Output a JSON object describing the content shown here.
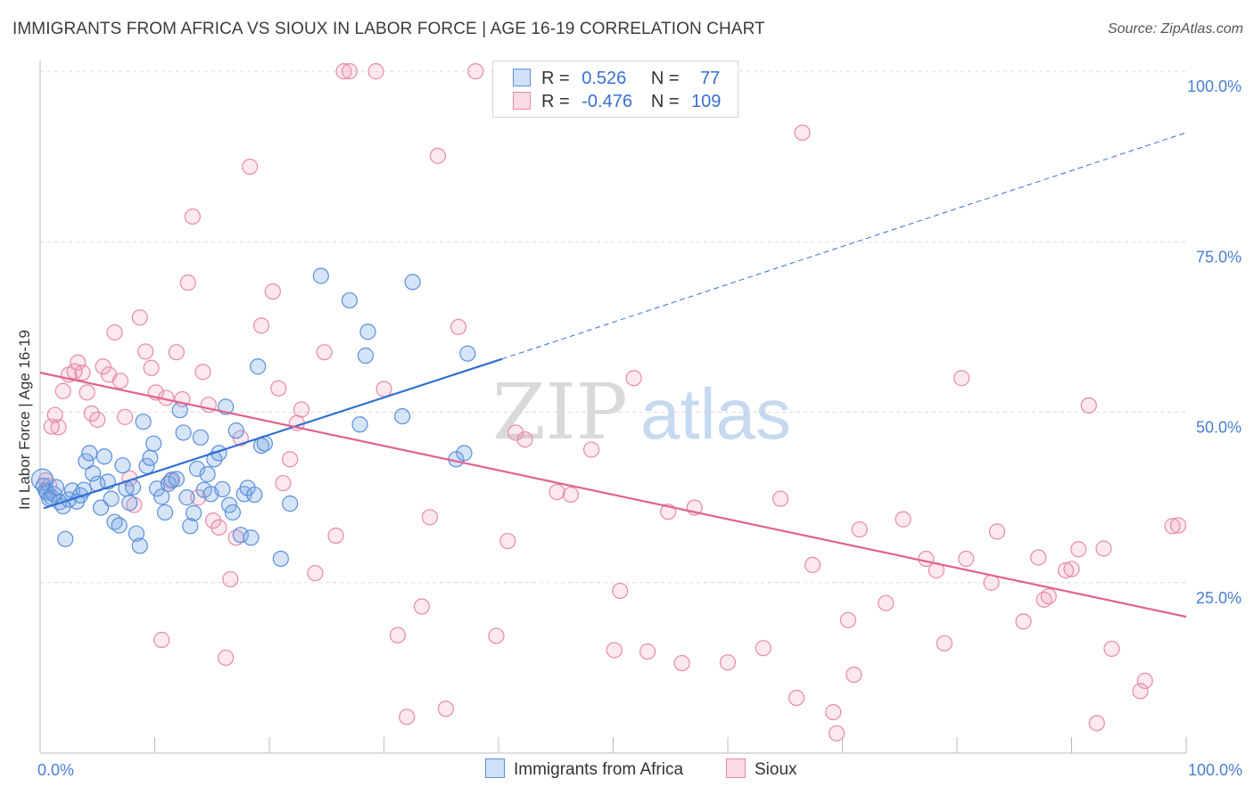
{
  "title": "IMMIGRANTS FROM AFRICA VS SIOUX IN LABOR FORCE | AGE 16-19 CORRELATION CHART",
  "source": "Source: ZipAtlas.com",
  "watermark": {
    "zip": "ZIP",
    "atlas": "atlas"
  },
  "colors": {
    "blue": "#5b8fd8",
    "blue_line": "#2f6fd1",
    "pink": "#e48aa8",
    "pink_line": "#e0628f",
    "tick": "#4a7fd0"
  },
  "legend": {
    "rows": [
      {
        "r_label": "R =",
        "r_value": "0.526",
        "n_label": "N =",
        "n_value": "77"
      },
      {
        "r_label": "R =",
        "r_value": "-0.476",
        "n_label": "N =",
        "n_value": "109"
      }
    ]
  },
  "bottom_legend": [
    "Immigrants from Africa",
    "Sioux"
  ],
  "chart_data": {
    "type": "scatter",
    "title": "IMMIGRANTS FROM AFRICA VS SIOUX IN LABOR FORCE | AGE 16-19 CORRELATION CHART",
    "xlabel": "",
    "ylabel": "In Labor Force | Age 16-19",
    "xlim": [
      0,
      100
    ],
    "ylim": [
      0,
      100
    ],
    "x_ticks": [
      "0.0%",
      "100.0%"
    ],
    "y_ticks": [
      {
        "value": 25,
        "label": "25.0%"
      },
      {
        "value": 50,
        "label": "50.0%"
      },
      {
        "value": 75,
        "label": "75.0%"
      },
      {
        "value": 100,
        "label": "100.0%"
      }
    ],
    "grid": "horizontal dashed",
    "legend_position": "top-center",
    "series": [
      {
        "name": "Immigrants from Africa",
        "color": "#5b8fd8",
        "trend": {
          "x0": 0.3,
          "y0": 35.9,
          "x1": 40.3,
          "y1": 57.8,
          "dash_to_x": 100,
          "dash_to_y": 91.0
        },
        "points": [
          [
            0.2,
            40.1
          ],
          [
            0.3,
            39.2
          ],
          [
            0.5,
            38.5
          ],
          [
            0.6,
            38.2
          ],
          [
            0.8,
            37.3
          ],
          [
            1.0,
            37.5
          ],
          [
            1.2,
            38.0
          ],
          [
            1.4,
            39.0
          ],
          [
            1.7,
            36.8
          ],
          [
            2.0,
            36.2
          ],
          [
            2.2,
            31.4
          ],
          [
            2.5,
            37.2
          ],
          [
            2.8,
            38.5
          ],
          [
            3.2,
            36.9
          ],
          [
            3.5,
            37.8
          ],
          [
            3.8,
            38.6
          ],
          [
            4.0,
            42.8
          ],
          [
            4.3,
            44.0
          ],
          [
            4.6,
            41.0
          ],
          [
            5.0,
            39.5
          ],
          [
            5.3,
            36.0
          ],
          [
            5.6,
            43.5
          ],
          [
            5.9,
            39.8
          ],
          [
            6.2,
            37.3
          ],
          [
            6.5,
            33.9
          ],
          [
            6.9,
            33.4
          ],
          [
            7.2,
            42.2
          ],
          [
            7.5,
            38.8
          ],
          [
            7.8,
            36.7
          ],
          [
            8.1,
            39.0
          ],
          [
            8.4,
            32.2
          ],
          [
            8.7,
            30.4
          ],
          [
            9.0,
            48.6
          ],
          [
            9.3,
            42.1
          ],
          [
            9.6,
            43.3
          ],
          [
            9.9,
            45.4
          ],
          [
            10.2,
            38.8
          ],
          [
            10.6,
            37.6
          ],
          [
            10.9,
            35.3
          ],
          [
            11.2,
            39.5
          ],
          [
            11.5,
            40.1
          ],
          [
            11.9,
            40.2
          ],
          [
            12.2,
            50.3
          ],
          [
            12.5,
            47.0
          ],
          [
            12.8,
            37.5
          ],
          [
            13.1,
            33.3
          ],
          [
            13.4,
            35.2
          ],
          [
            13.7,
            41.7
          ],
          [
            14.0,
            46.3
          ],
          [
            14.3,
            38.6
          ],
          [
            14.6,
            40.9
          ],
          [
            14.9,
            38.0
          ],
          [
            15.2,
            43.1
          ],
          [
            15.6,
            44.0
          ],
          [
            15.9,
            38.7
          ],
          [
            16.2,
            50.8
          ],
          [
            16.5,
            36.4
          ],
          [
            16.8,
            35.3
          ],
          [
            17.1,
            47.3
          ],
          [
            17.5,
            32.0
          ],
          [
            17.8,
            38.0
          ],
          [
            18.1,
            38.9
          ],
          [
            18.4,
            31.6
          ],
          [
            18.7,
            37.9
          ],
          [
            19.0,
            56.7
          ],
          [
            19.3,
            45.1
          ],
          [
            19.6,
            45.4
          ],
          [
            21.0,
            28.5
          ],
          [
            21.8,
            36.6
          ],
          [
            24.5,
            70.0
          ],
          [
            27.0,
            66.4
          ],
          [
            27.9,
            48.2
          ],
          [
            28.4,
            58.3
          ],
          [
            28.6,
            61.8
          ],
          [
            31.6,
            49.4
          ],
          [
            32.5,
            69.1
          ],
          [
            36.3,
            43.1
          ],
          [
            37.0,
            44.0
          ],
          [
            37.3,
            58.6
          ]
        ]
      },
      {
        "name": "Sioux",
        "color": "#e48aa8",
        "trend": {
          "x0": 0.0,
          "y0": 55.8,
          "x1": 100.0,
          "y1": 20.0
        },
        "points": [
          [
            0.5,
            40.0
          ],
          [
            0.8,
            39.2
          ],
          [
            1.0,
            47.9
          ],
          [
            1.3,
            49.6
          ],
          [
            1.6,
            47.8
          ],
          [
            2.0,
            53.1
          ],
          [
            2.5,
            55.5
          ],
          [
            3.0,
            56.0
          ],
          [
            3.3,
            57.3
          ],
          [
            3.7,
            55.8
          ],
          [
            4.1,
            52.9
          ],
          [
            4.5,
            49.8
          ],
          [
            5.0,
            48.9
          ],
          [
            5.5,
            56.7
          ],
          [
            6.0,
            55.5
          ],
          [
            6.5,
            61.7
          ],
          [
            7.0,
            54.6
          ],
          [
            7.4,
            49.3
          ],
          [
            7.8,
            40.3
          ],
          [
            8.2,
            36.4
          ],
          [
            8.7,
            63.9
          ],
          [
            9.2,
            58.9
          ],
          [
            9.7,
            56.5
          ],
          [
            10.1,
            52.9
          ],
          [
            10.6,
            16.6
          ],
          [
            11.0,
            52.1
          ],
          [
            11.4,
            39.9
          ],
          [
            11.9,
            58.8
          ],
          [
            12.4,
            51.9
          ],
          [
            12.9,
            69.0
          ],
          [
            13.3,
            78.7
          ],
          [
            13.8,
            37.5
          ],
          [
            14.2,
            55.9
          ],
          [
            14.7,
            51.1
          ],
          [
            15.1,
            34.1
          ],
          [
            15.6,
            33.1
          ],
          [
            16.2,
            14.0
          ],
          [
            16.6,
            25.5
          ],
          [
            17.1,
            31.6
          ],
          [
            17.5,
            46.2
          ],
          [
            18.3,
            86.0
          ],
          [
            19.3,
            62.7
          ],
          [
            20.3,
            67.7
          ],
          [
            20.8,
            53.5
          ],
          [
            21.2,
            39.6
          ],
          [
            21.8,
            43.1
          ],
          [
            22.4,
            48.4
          ],
          [
            22.8,
            50.4
          ],
          [
            24.0,
            26.4
          ],
          [
            24.8,
            58.8
          ],
          [
            25.8,
            31.9
          ],
          [
            26.5,
            100.0
          ],
          [
            27.0,
            100.0
          ],
          [
            29.3,
            100.0
          ],
          [
            30.0,
            53.4
          ],
          [
            31.2,
            17.3
          ],
          [
            32.0,
            5.3
          ],
          [
            33.3,
            21.5
          ],
          [
            34.0,
            34.6
          ],
          [
            34.7,
            87.6
          ],
          [
            35.4,
            6.5
          ],
          [
            36.5,
            62.5
          ],
          [
            38.0,
            100.0
          ],
          [
            39.8,
            17.2
          ],
          [
            40.8,
            31.1
          ],
          [
            41.5,
            47.0
          ],
          [
            42.3,
            46.0
          ],
          [
            43.8,
            100.0
          ],
          [
            45.1,
            38.3
          ],
          [
            46.3,
            37.9
          ],
          [
            48.1,
            44.5
          ],
          [
            50.1,
            15.1
          ],
          [
            50.6,
            23.8
          ],
          [
            51.8,
            55.0
          ],
          [
            53.0,
            14.9
          ],
          [
            54.8,
            35.4
          ],
          [
            56.0,
            13.2
          ],
          [
            57.1,
            36.0
          ],
          [
            60.0,
            13.3
          ],
          [
            63.1,
            15.4
          ],
          [
            64.6,
            37.3
          ],
          [
            66.0,
            8.1
          ],
          [
            66.5,
            91.0
          ],
          [
            67.4,
            27.6
          ],
          [
            69.2,
            6.0
          ],
          [
            69.5,
            2.9
          ],
          [
            70.5,
            19.5
          ],
          [
            71.0,
            11.5
          ],
          [
            71.5,
            32.8
          ],
          [
            73.8,
            22.0
          ],
          [
            75.3,
            34.3
          ],
          [
            77.3,
            28.5
          ],
          [
            78.2,
            26.8
          ],
          [
            78.9,
            16.1
          ],
          [
            80.4,
            55.0
          ],
          [
            80.8,
            28.5
          ],
          [
            83.0,
            25.0
          ],
          [
            83.5,
            32.5
          ],
          [
            85.8,
            19.3
          ],
          [
            87.1,
            28.7
          ],
          [
            87.6,
            22.5
          ],
          [
            88.0,
            23.0
          ],
          [
            89.5,
            26.8
          ],
          [
            90.0,
            27.0
          ],
          [
            90.6,
            29.9
          ],
          [
            91.5,
            51.0
          ],
          [
            92.2,
            4.4
          ],
          [
            92.8,
            30.0
          ],
          [
            93.5,
            15.3
          ],
          [
            96.0,
            9.1
          ],
          [
            96.4,
            10.6
          ],
          [
            98.8,
            33.3
          ],
          [
            99.3,
            33.4
          ]
        ]
      }
    ]
  }
}
